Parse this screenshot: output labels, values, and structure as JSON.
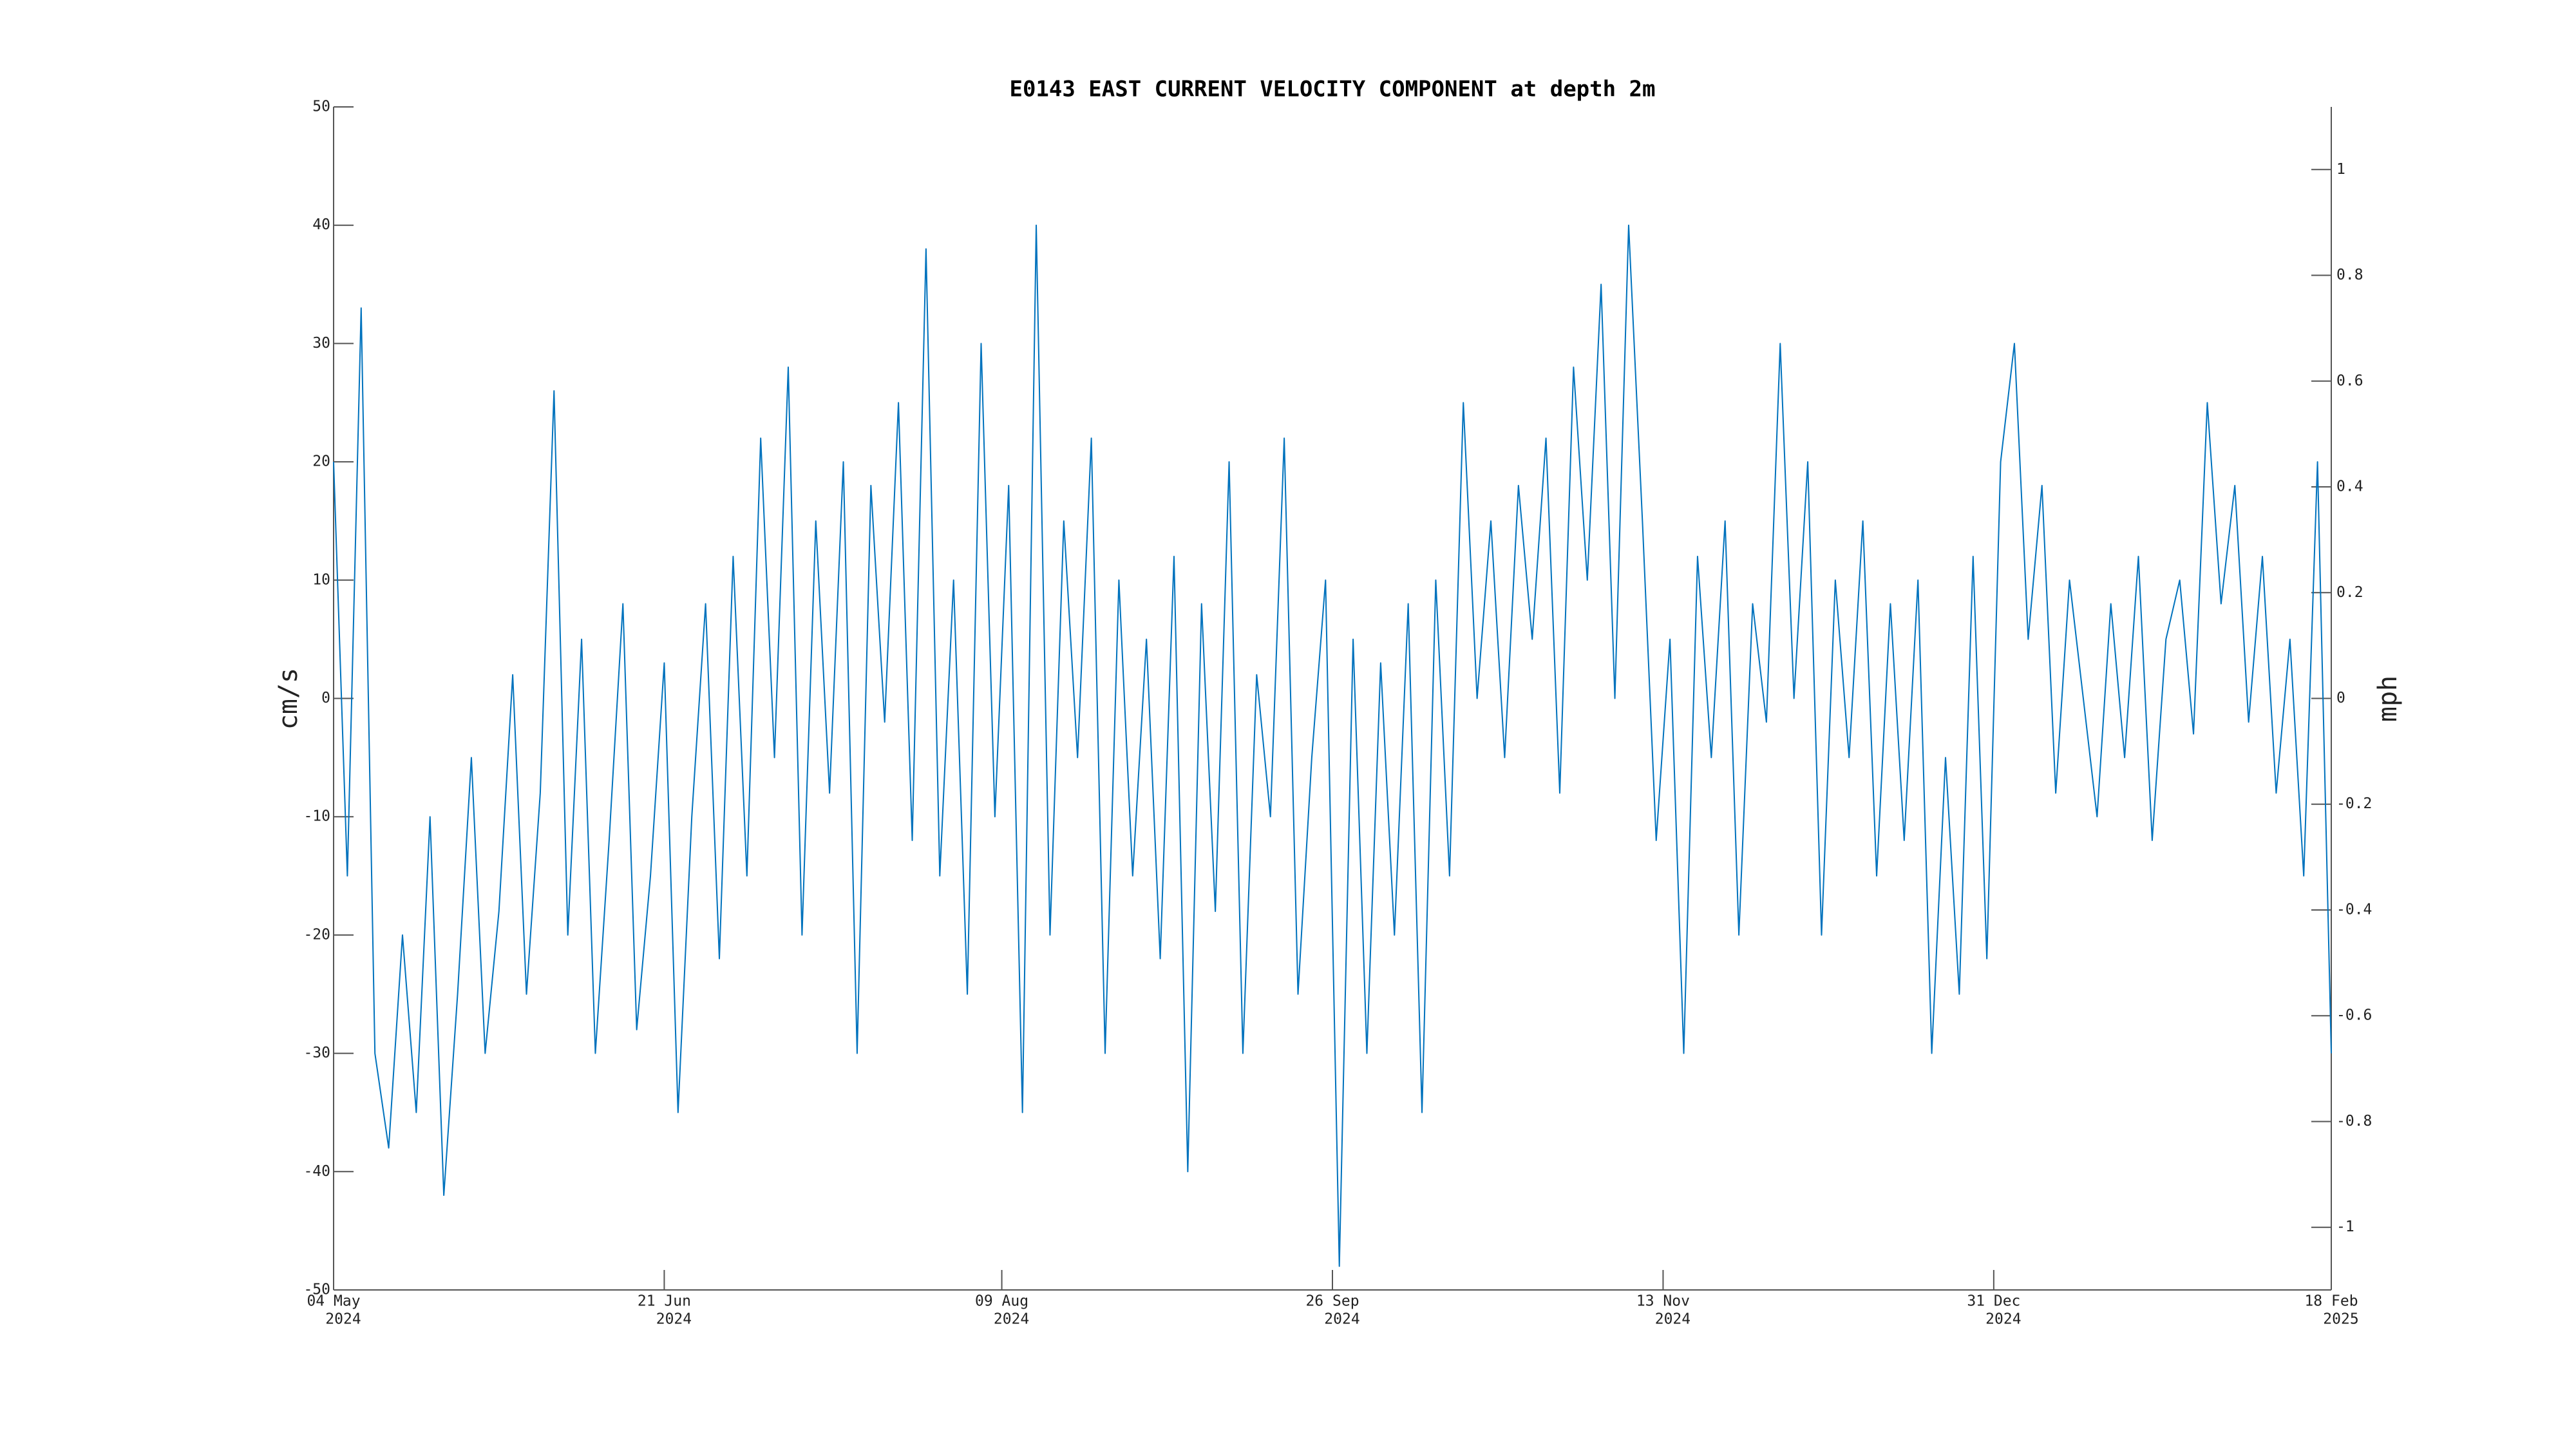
{
  "chart_data": {
    "type": "line",
    "title": "E0143 EAST CURRENT VELOCITY COMPONENT at depth 2m",
    "y_label": "cm/s",
    "y2_label": "mph",
    "color": "#0072bd",
    "xlim": [
      "2024-05-04",
      "2025-02-18"
    ],
    "xticks": [
      {
        "value": "2024-05-04",
        "label": [
          "04 May",
          "2024"
        ]
      },
      {
        "value": "2024-06-21",
        "label": [
          "21 Jun",
          "2024"
        ]
      },
      {
        "value": "2024-08-09",
        "label": [
          "09 Aug",
          "2024"
        ]
      },
      {
        "value": "2024-09-26",
        "label": [
          "26 Sep",
          "2024"
        ]
      },
      {
        "value": "2024-11-13",
        "label": [
          "13 Nov",
          "2024"
        ]
      },
      {
        "value": "2024-12-31",
        "label": [
          "31 Dec",
          "2024"
        ]
      },
      {
        "value": "2025-02-18",
        "label": [
          "18 Feb",
          "2025"
        ]
      }
    ],
    "ylim": [
      -50,
      50
    ],
    "yticks": [
      -50,
      -40,
      -30,
      -20,
      -10,
      0,
      10,
      20,
      30,
      40,
      50
    ],
    "y2lim": [
      -1.1185,
      1.1185
    ],
    "y2ticks": [
      -1,
      -0.8,
      -0.6,
      -0.4,
      -0.2,
      0,
      0.2,
      0.4,
      0.6,
      0.8,
      1
    ],
    "x": [
      "2024-05-04",
      "2024-05-06",
      "2024-05-08",
      "2024-05-10",
      "2024-05-12",
      "2024-05-14",
      "2024-05-16",
      "2024-05-18",
      "2024-05-20",
      "2024-05-22",
      "2024-05-24",
      "2024-05-26",
      "2024-05-28",
      "2024-05-30",
      "2024-06-01",
      "2024-06-03",
      "2024-06-05",
      "2024-06-07",
      "2024-06-09",
      "2024-06-11",
      "2024-06-13",
      "2024-06-15",
      "2024-06-17",
      "2024-06-19",
      "2024-06-21",
      "2024-06-23",
      "2024-06-25",
      "2024-06-27",
      "2024-06-29",
      "2024-07-01",
      "2024-07-03",
      "2024-07-05",
      "2024-07-07",
      "2024-07-09",
      "2024-07-11",
      "2024-07-13",
      "2024-07-15",
      "2024-07-17",
      "2024-07-19",
      "2024-07-21",
      "2024-07-23",
      "2024-07-25",
      "2024-07-27",
      "2024-07-29",
      "2024-07-31",
      "2024-08-02",
      "2024-08-04",
      "2024-08-06",
      "2024-08-08",
      "2024-08-10",
      "2024-08-12",
      "2024-08-14",
      "2024-08-16",
      "2024-08-18",
      "2024-08-20",
      "2024-08-22",
      "2024-08-24",
      "2024-08-26",
      "2024-08-28",
      "2024-08-30",
      "2024-09-01",
      "2024-09-03",
      "2024-09-05",
      "2024-09-07",
      "2024-09-09",
      "2024-09-11",
      "2024-09-13",
      "2024-09-15",
      "2024-09-17",
      "2024-09-19",
      "2024-09-21",
      "2024-09-23",
      "2024-09-25",
      "2024-09-27",
      "2024-09-29",
      "2024-10-01",
      "2024-10-03",
      "2024-10-05",
      "2024-10-07",
      "2024-10-09",
      "2024-10-11",
      "2024-10-13",
      "2024-10-15",
      "2024-10-17",
      "2024-10-19",
      "2024-10-21",
      "2024-10-23",
      "2024-10-25",
      "2024-10-27",
      "2024-10-29",
      "2024-10-31",
      "2024-11-02",
      "2024-11-04",
      "2024-11-06",
      "2024-11-08",
      "2024-11-10",
      "2024-11-12",
      "2024-11-14",
      "2024-11-16",
      "2024-11-18",
      "2024-11-20",
      "2024-11-22",
      "2024-11-24",
      "2024-11-26",
      "2024-11-28",
      "2024-11-30",
      "2024-12-02",
      "2024-12-04",
      "2024-12-06",
      "2024-12-08",
      "2024-12-10",
      "2024-12-12",
      "2024-12-14",
      "2024-12-16",
      "2024-12-18",
      "2024-12-20",
      "2024-12-22",
      "2024-12-24",
      "2024-12-26",
      "2024-12-28",
      "2024-12-30",
      "2025-01-01",
      "2025-01-03",
      "2025-01-05",
      "2025-01-07",
      "2025-01-09",
      "2025-01-11",
      "2025-01-13",
      "2025-01-15",
      "2025-01-17",
      "2025-01-19",
      "2025-01-21",
      "2025-01-23",
      "2025-01-25",
      "2025-01-27",
      "2025-01-29",
      "2025-01-31",
      "2025-02-02",
      "2025-02-04",
      "2025-02-06",
      "2025-02-08",
      "2025-02-10",
      "2025-02-12",
      "2025-02-14",
      "2025-02-16",
      "2025-02-18"
    ],
    "values": [
      20,
      -15,
      33,
      -30,
      -38,
      -20,
      -35,
      -10,
      -42,
      -25,
      -5,
      -30,
      -18,
      2,
      -25,
      -8,
      26,
      -20,
      5,
      -30,
      -12,
      8,
      -28,
      -15,
      3,
      -35,
      -10,
      8,
      -22,
      12,
      -15,
      22,
      -5,
      28,
      -20,
      15,
      -8,
      20,
      -30,
      18,
      -2,
      25,
      -12,
      38,
      -15,
      10,
      -25,
      30,
      -10,
      18,
      -35,
      40,
      -20,
      15,
      -5,
      22,
      -30,
      10,
      -15,
      5,
      -22,
      12,
      -40,
      8,
      -18,
      20,
      -30,
      2,
      -10,
      22,
      -25,
      -5,
      10,
      -48,
      5,
      -30,
      3,
      -20,
      8,
      -35,
      10,
      -15,
      25,
      0,
      15,
      -5,
      18,
      5,
      22,
      -8,
      28,
      10,
      35,
      0,
      40,
      15,
      -12,
      5,
      -30,
      12,
      -5,
      15,
      -20,
      8,
      -2,
      30,
      0,
      20,
      -20,
      10,
      -5,
      15,
      -15,
      8,
      -12,
      10,
      -30,
      -5,
      -25,
      12,
      -22,
      20,
      30,
      5,
      18,
      -8,
      10,
      0,
      -10,
      8,
      -5,
      12,
      -12,
      5,
      10,
      -3,
      25,
      8,
      18,
      -2,
      12,
      -8,
      5,
      -15,
      20,
      -30
    ]
  }
}
